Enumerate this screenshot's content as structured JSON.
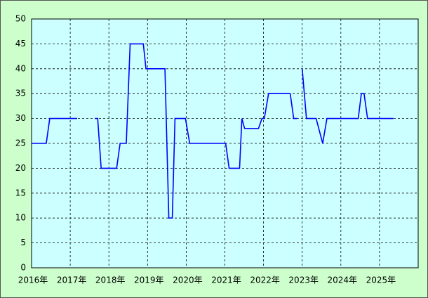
{
  "chart_data": {
    "type": "line",
    "x": [
      2016.0,
      2016.38,
      2016.47,
      2017.18,
      2017.4,
      2017.64,
      2017.71,
      2017.8,
      2018.2,
      2018.29,
      2018.45,
      2018.55,
      2018.89,
      2018.96,
      2019.45,
      2019.55,
      2019.64,
      2019.71,
      2019.98,
      2020.09,
      2021.02,
      2021.11,
      2021.38,
      2021.44,
      2021.51,
      2021.87,
      2021.96,
      2022.02,
      2022.13,
      2022.69,
      2022.78,
      2022.87,
      2022.95,
      2023.0,
      2023.11,
      2023.36,
      2023.53,
      2023.64,
      2024.45,
      2024.53,
      2024.6,
      2024.69,
      2025.36
    ],
    "series": [
      {
        "color": "#0000ff",
        "values": [
          25,
          25,
          30,
          30,
          null,
          30,
          30,
          20,
          20,
          25,
          25,
          45,
          45,
          40,
          40,
          10,
          10,
          30,
          30,
          25,
          25,
          20,
          20,
          30,
          28,
          28,
          30,
          30,
          35,
          35,
          30,
          30,
          null,
          40,
          30,
          30,
          25,
          30,
          30,
          35,
          35,
          30,
          30
        ]
      }
    ],
    "xlim": [
      2016,
      2026
    ],
    "xticks": [
      {
        "value": 2016,
        "label": "2016年"
      },
      {
        "value": 2017,
        "label": "2017年"
      },
      {
        "value": 2018,
        "label": "2018年"
      },
      {
        "value": 2019,
        "label": "2019年"
      },
      {
        "value": 2020,
        "label": "2020年"
      },
      {
        "value": 2021,
        "label": "2021年"
      },
      {
        "value": 2022,
        "label": "2022年"
      },
      {
        "value": 2023,
        "label": "2023年"
      },
      {
        "value": 2024,
        "label": "2024年"
      },
      {
        "value": 2025,
        "label": "2025年"
      }
    ],
    "ylim": [
      0,
      50
    ],
    "yticks": [
      0,
      5,
      10,
      15,
      20,
      25,
      30,
      35,
      40,
      45,
      50
    ],
    "grid": true
  }
}
